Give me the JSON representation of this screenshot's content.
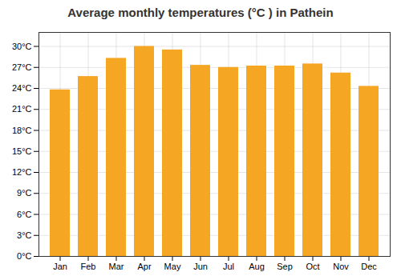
{
  "chart_data": {
    "type": "bar",
    "title": "Average monthly temperatures (°C ) in Pathein",
    "categories": [
      "Jan",
      "Feb",
      "Mar",
      "Apr",
      "May",
      "Jun",
      "Jul",
      "Aug",
      "Sep",
      "Oct",
      "Nov",
      "Dec"
    ],
    "values": [
      23.8,
      25.7,
      28.3,
      30.0,
      29.5,
      27.3,
      27.0,
      27.2,
      27.2,
      27.5,
      26.2,
      24.3
    ],
    "color": "#F5A623",
    "ylim": [
      0,
      32
    ],
    "yticks": [
      {
        "value": 0,
        "label": "0°C"
      },
      {
        "value": 3,
        "label": "3°C"
      },
      {
        "value": 6,
        "label": "6°C"
      },
      {
        "value": 9,
        "label": "9°C"
      },
      {
        "value": 12,
        "label": "12°C"
      },
      {
        "value": 15,
        "label": "15°C"
      },
      {
        "value": 18,
        "label": "18°C"
      },
      {
        "value": 21,
        "label": "21°C"
      },
      {
        "value": 24,
        "label": "24°C"
      },
      {
        "value": 27,
        "label": "27°C"
      },
      {
        "value": 30,
        "label": "30°C"
      }
    ],
    "grid": true
  }
}
